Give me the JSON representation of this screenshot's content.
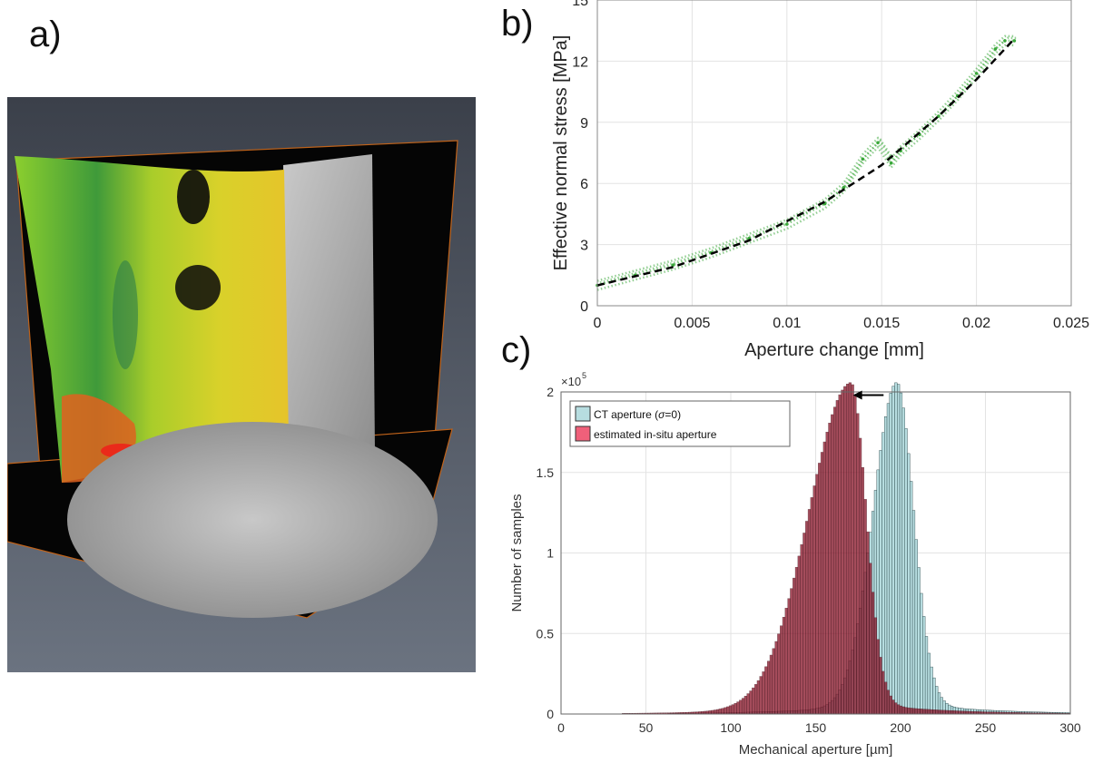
{
  "panel_labels": {
    "a": "a)",
    "b": "b)",
    "c": "c)"
  },
  "colors": {
    "stress_points": "#3aa83a",
    "stress_fit": "#000000",
    "ct_bars": "#b7dde0",
    "insitu_bars": "#8b1a2e",
    "insitu_legend": "#f0607a",
    "grid": "#e3e3e3"
  },
  "chart_data": [
    {
      "type": "scatter",
      "panel": "b",
      "xlabel": "Aperture change [mm]",
      "ylabel": "Effective normal stress [MPa]",
      "xlim": [
        0,
        0.025
      ],
      "ylim": [
        0,
        15
      ],
      "xticks": [
        "0",
        "0.005",
        "0.01",
        "0.015",
        "0.02",
        "0.025"
      ],
      "yticks": [
        "0",
        "3",
        "6",
        "9",
        "12",
        "15"
      ],
      "grid": true,
      "series": [
        {
          "style": "scatter",
          "x": [
            0.0,
            0.002,
            0.004,
            0.006,
            0.008,
            0.01,
            0.012,
            0.013,
            0.014,
            0.0148,
            0.0155,
            0.016,
            0.017,
            0.018,
            0.019,
            0.02,
            0.021,
            0.0215,
            0.022
          ],
          "y": [
            1.0,
            1.5,
            2.0,
            2.6,
            3.3,
            4.0,
            5.0,
            5.8,
            7.2,
            8.0,
            7.0,
            7.6,
            8.4,
            9.3,
            10.3,
            11.4,
            12.6,
            13.0,
            13.0
          ]
        },
        {
          "style": "dashed-line",
          "x": [
            0.0,
            0.004,
            0.008,
            0.012,
            0.015,
            0.018,
            0.02,
            0.022
          ],
          "y": [
            1.0,
            1.9,
            3.2,
            5.1,
            6.9,
            9.3,
            11.1,
            13.1
          ]
        }
      ]
    },
    {
      "type": "bar",
      "panel": "c",
      "xlabel": "Mechanical aperture [µm]",
      "ylabel": "Number of samples",
      "y_exponent_label": "×10",
      "y_exponent_power": "5",
      "xlim": [
        0,
        300
      ],
      "ylim": [
        0,
        2
      ],
      "xticks": [
        "0",
        "50",
        "100",
        "150",
        "200",
        "250",
        "300"
      ],
      "yticks": [
        "0",
        "0.5",
        "1",
        "1.5",
        "2"
      ],
      "grid": true,
      "legend_position": "top-left",
      "series": [
        {
          "legend_prefix": "CT aperture (",
          "legend_symbol": "σ",
          "legend_suffix": "=0)",
          "peak_x": 197,
          "peak_y": 1.98,
          "spread_low": 14,
          "spread_high": 10
        },
        {
          "name": "estimated in-situ aperture",
          "peak_x": 170,
          "peak_y": 1.98,
          "spread_low": 25,
          "spread_high": 9
        }
      ],
      "annotation": {
        "type": "arrow",
        "from_x": 190,
        "to_x": 172,
        "y": 1.98
      }
    }
  ]
}
